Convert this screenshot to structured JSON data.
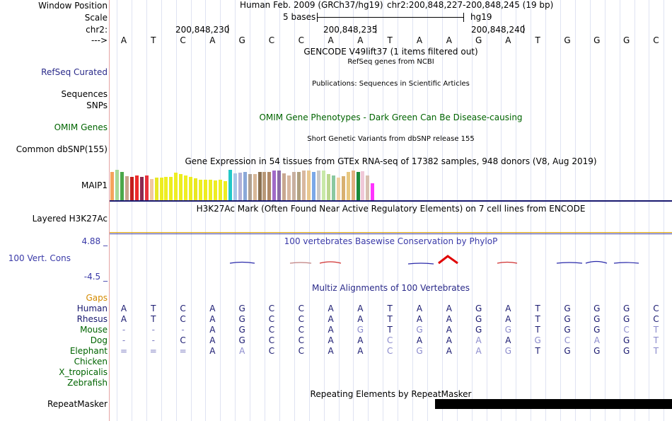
{
  "left_labels": {
    "window_position": "Window Position",
    "scale": "Scale",
    "chr": "chr2:",
    "strand_arrow": "--->",
    "refseq": "RefSeq Curated",
    "sequences": "Sequences",
    "snps": "SNPs",
    "omim_genes": "OMIM Genes",
    "dbsnp": "Common dbSNP(155)",
    "maip1": "MAIP1",
    "h3k27ac": "Layered H3K27Ac",
    "cons_max": "4.88 _",
    "cons_name": "100 Vert. Cons",
    "cons_min": "-4.5 _",
    "gaps": "Gaps",
    "species": [
      "Human",
      "Rhesus",
      "Mouse",
      "Dog",
      "Elephant",
      "Chicken",
      "X_tropicalis",
      "Zebrafish"
    ],
    "repeatmasker": "RepeatMasker"
  },
  "header": {
    "assembly": "Human Feb. 2009 (GRCh37/hg19)",
    "position": "chr2:200,848,227-200,848,245 (19 bp)",
    "scale_label": "5 bases",
    "scale_db": "hg19",
    "ticks": [
      "200,848,230",
      "200,848,235",
      "200,848,240"
    ]
  },
  "bases": [
    "A",
    "T",
    "C",
    "A",
    "G",
    "C",
    "C",
    "A",
    "A",
    "T",
    "A",
    "A",
    "G",
    "A",
    "T",
    "G",
    "G",
    "G",
    "C"
  ],
  "tracks": {
    "gencode": "GENCODE V49lift37 (1 items filtered out)",
    "refseq": "RefSeq genes from NCBI",
    "publications": "Publications: Sequences in Scientific Articles",
    "omim": "OMIM Gene Phenotypes - Dark Green Can Be Disease-causing",
    "dbsnp": "Short Genetic Variants from dbSNP release 155",
    "gtex": "Gene Expression in 54 tissues from GTEx RNA-seq of 17382 samples, 948 donors (V8, Aug 2019)",
    "h3k27ac": "H3K27Ac Mark (Often Found Near Active Regulatory Elements) on 7 cell lines from ENCODE",
    "phylop": "100 vertebrates Basewise Conservation by PhyloP",
    "multiz": "Multiz Alignments of 100 Vertebrates",
    "repeatmasker": "Repeating Elements by RepeatMasker"
  },
  "alignments": {
    "Human": [
      "A",
      "T",
      "C",
      "A",
      "G",
      "C",
      "C",
      "A",
      "A",
      "T",
      "A",
      "A",
      "G",
      "A",
      "T",
      "G",
      "G",
      "G",
      "C"
    ],
    "Rhesus": [
      "A",
      "T",
      "C",
      "A",
      "G",
      "C",
      "C",
      "A",
      "A",
      "T",
      "A",
      "A",
      "G",
      "A",
      "T",
      "G",
      "G",
      "G",
      "C"
    ],
    "Mouse": [
      "-",
      "-",
      "-",
      "A",
      "G",
      "C",
      "C",
      "A",
      "G",
      "T",
      "G",
      "A",
      "G",
      "G",
      "T",
      "G",
      "G",
      "C",
      "T"
    ],
    "Dog": [
      "-",
      "-",
      "C",
      "A",
      "G",
      "C",
      "C",
      "A",
      "A",
      "C",
      "A",
      "A",
      "A",
      "A",
      "G",
      "C",
      "A",
      "G",
      "T"
    ],
    "Elephant": [
      "=",
      "=",
      "=",
      "A",
      "A",
      "C",
      "C",
      "A",
      "A",
      "C",
      "G",
      "A",
      "A",
      "G",
      "T",
      "G",
      "G",
      "G",
      "T"
    ]
  },
  "gtex_expression": [
    0.9,
    0.98,
    0.9,
    0.78,
    0.75,
    0.8,
    0.75,
    0.8,
    0.68,
    0.72,
    0.72,
    0.76,
    0.76,
    0.88,
    0.83,
    0.8,
    0.76,
    0.7,
    0.65,
    0.66,
    0.66,
    0.64,
    0.66,
    0.62,
    0.97,
    0.87,
    0.88,
    0.92,
    0.85,
    0.83,
    0.92,
    0.92,
    0.9,
    0.96,
    0.96,
    0.86,
    0.8,
    0.9,
    0.92,
    0.95,
    0.95,
    0.9,
    0.95,
    0.96,
    0.83,
    0.8,
    0.73,
    0.78,
    0.92,
    0.95,
    0.92,
    0.93,
    0.8,
    0.55
  ],
  "colors": {
    "navy": "#191970",
    "label_blue": "#2a2a8a",
    "green": "#006400",
    "gaps_orange": "#d48b00",
    "phylop_blue": "#3a3aa8",
    "grid": "#dfe3f2",
    "separator": "#e4a4a4"
  }
}
